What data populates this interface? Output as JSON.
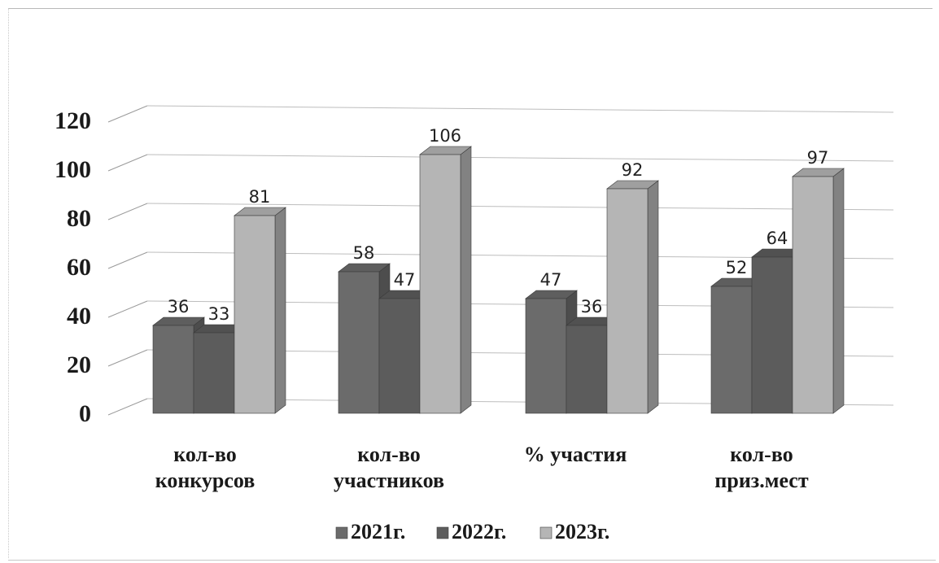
{
  "chart_data": {
    "type": "bar",
    "title": "",
    "xlabel": "",
    "ylabel": "",
    "categories": [
      [
        "кол-во",
        "конкурсов"
      ],
      [
        "кол-во",
        "участников"
      ],
      [
        "% участия"
      ],
      [
        "кол-во",
        "приз.мест"
      ]
    ],
    "series": [
      {
        "name": "2021г.",
        "values": [
          36,
          58,
          47,
          52
        ],
        "color": "#6b6b6b"
      },
      {
        "name": "2022г.",
        "values": [
          33,
          47,
          36,
          64
        ],
        "color": "#5c5c5c"
      },
      {
        "name": "2023г.",
        "values": [
          81,
          106,
          92,
          97
        ],
        "color": "#b5b5b5"
      }
    ],
    "ylim": [
      0,
      120
    ],
    "yticks": [
      0,
      20,
      40,
      60,
      80,
      100,
      120
    ],
    "grid": true,
    "legend": "bottom",
    "style": "3d"
  }
}
